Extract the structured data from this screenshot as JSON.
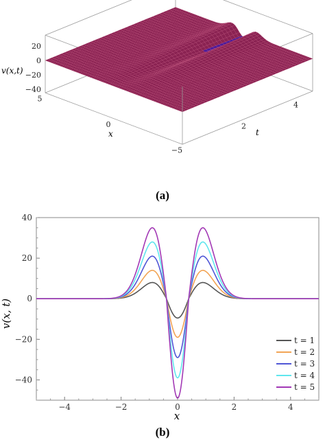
{
  "figure": {
    "caption_a": "(a)",
    "caption_b": "(b)"
  },
  "chart_data": [
    {
      "type": "surface",
      "zlabel": "v(x,t)",
      "xlabel": "x",
      "ylabel": "t",
      "z_ticks": [
        20,
        0,
        -20,
        -40
      ],
      "x_ticks": [
        5,
        0,
        -5
      ],
      "t_ticks": [
        2,
        4
      ],
      "x_range": [
        -5,
        5
      ],
      "t_range": [
        0,
        5
      ],
      "z_range": [
        -45,
        35
      ],
      "colors": {
        "surface": "#8a2252",
        "trough": "#4a1a9a",
        "mesh": "#c0507a"
      }
    },
    {
      "type": "line",
      "xlabel": "x",
      "ylabel": "v(x, t)",
      "xlim": [
        -5,
        5
      ],
      "ylim": [
        -50,
        40
      ],
      "x_ticks": [
        -4,
        -2,
        0,
        2,
        4
      ],
      "y_ticks": [
        -40,
        -20,
        0,
        20,
        40
      ],
      "legend_position": "bottom-right",
      "series": [
        {
          "name": "t = 1",
          "color": "#555555",
          "peak": 8,
          "trough": -9.5
        },
        {
          "name": "t = 2",
          "color": "#f2a455",
          "peak": 14,
          "trough": -19
        },
        {
          "name": "t = 3",
          "color": "#4f56d6",
          "peak": 21,
          "trough": -29
        },
        {
          "name": "t = 4",
          "color": "#5fe6ee",
          "peak": 28,
          "trough": -39
        },
        {
          "name": "t = 5",
          "color": "#a238b5",
          "peak": 35,
          "trough": -49
        }
      ]
    }
  ]
}
